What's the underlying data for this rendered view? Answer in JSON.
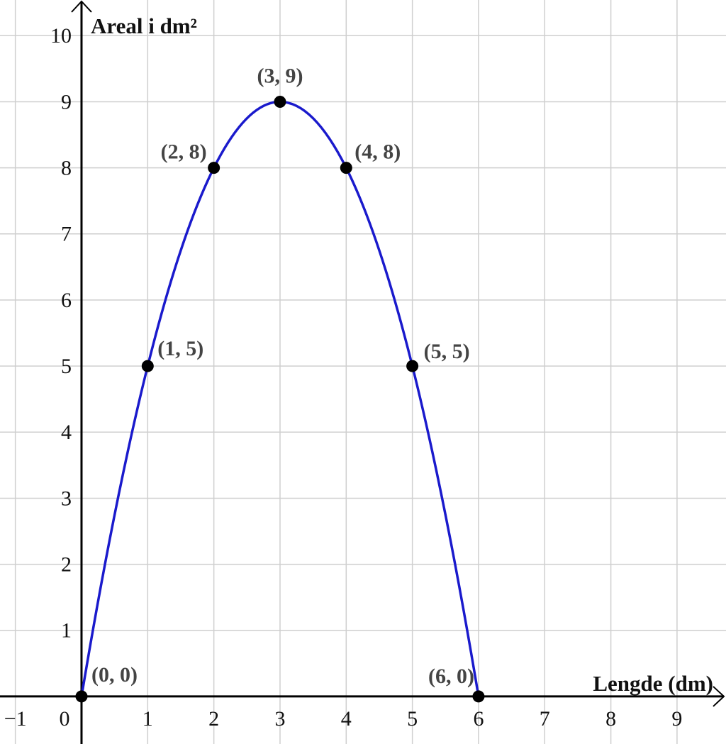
{
  "chart_data": {
    "type": "line",
    "xlabel": "Lengde (dm)",
    "ylabel": "Areal i dm²",
    "x": [
      0,
      1,
      2,
      3,
      4,
      5,
      6
    ],
    "series": [
      {
        "color": "#1a1acc",
        "values": [
          0,
          5,
          8,
          9,
          8,
          5,
          0
        ],
        "point_labels": [
          "(0, 0)",
          "(1, 5)",
          "(2, 8)",
          "(3, 9)",
          "(4, 8)",
          "(5, 5)",
          "(6, 0)"
        ]
      }
    ],
    "point_color": "#000000",
    "xlim": [
      -1.232,
      9.74
    ],
    "ylim": [
      -0.72,
      10.54
    ],
    "xticks": [
      {
        "value": -1,
        "label": "−1"
      },
      0,
      1,
      2,
      3,
      4,
      5,
      6,
      7,
      8,
      9
    ],
    "yticks": [
      1,
      2,
      3,
      4,
      5,
      6,
      7,
      8,
      9,
      10
    ],
    "grid": true
  }
}
